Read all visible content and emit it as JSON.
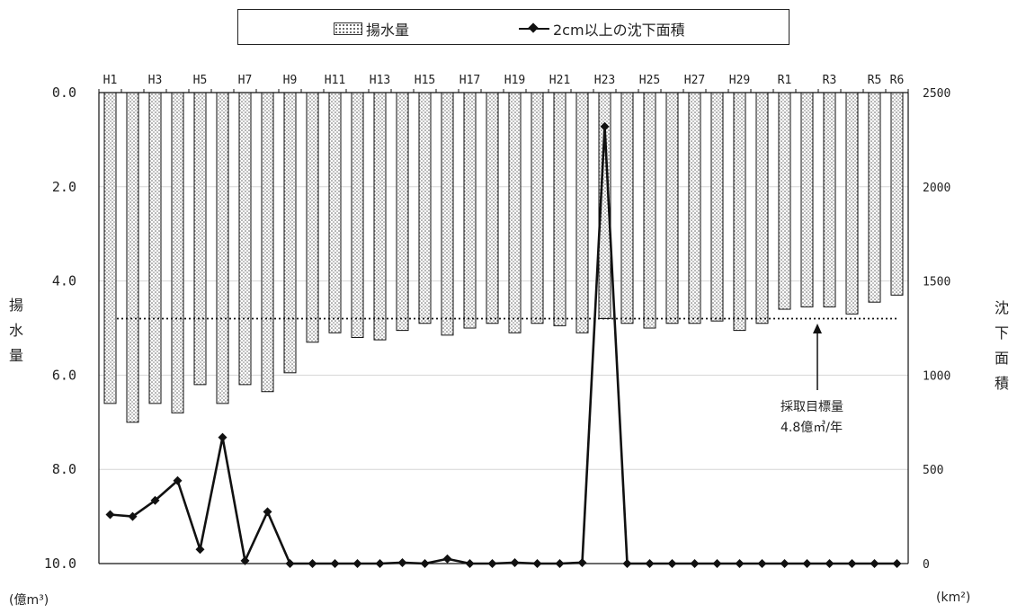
{
  "legend": {
    "bar_label": "揚水量",
    "line_label": "2cm以上の沈下面積"
  },
  "left_axis_title": "揚水量",
  "right_axis_title": "沈下面積",
  "left_unit": "(億m³)",
  "right_unit": "(km²)",
  "annotation": {
    "line1": "採取目標量",
    "line2": "4.8億㎥/年"
  },
  "chart_data": {
    "type": "bar",
    "categories": [
      "H1",
      "H2",
      "H3",
      "H4",
      "H5",
      "H6",
      "H7",
      "H8",
      "H9",
      "H10",
      "H11",
      "H12",
      "H13",
      "H14",
      "H15",
      "H16",
      "H17",
      "H18",
      "H19",
      "H20",
      "H21",
      "H22",
      "H23",
      "H24",
      "H25",
      "H26",
      "H27",
      "H28",
      "H29",
      "H30",
      "R1",
      "R2",
      "R3",
      "R4",
      "R5",
      "R6"
    ],
    "tick_labels": [
      "H1",
      "H3",
      "H5",
      "H7",
      "H9",
      "H11",
      "H13",
      "H15",
      "H17",
      "H19",
      "H21",
      "H23",
      "H25",
      "H27",
      "H29",
      "R1",
      "R3",
      "R5",
      "R6"
    ],
    "series": [
      {
        "name": "揚水量",
        "axis": "left",
        "type": "bar",
        "values": [
          6.6,
          7.0,
          6.6,
          6.8,
          6.2,
          6.6,
          6.2,
          6.35,
          5.95,
          5.3,
          5.1,
          5.2,
          5.25,
          5.05,
          4.9,
          5.15,
          5.0,
          4.9,
          5.1,
          4.9,
          4.95,
          5.1,
          4.8,
          4.9,
          5.0,
          4.9,
          4.9,
          4.85,
          5.05,
          4.9,
          4.6,
          4.55,
          4.55,
          4.7,
          4.45,
          4.3
        ]
      },
      {
        "name": "2cm以上の沈下面積",
        "axis": "right",
        "type": "line",
        "values": [
          260,
          250,
          335,
          440,
          75,
          670,
          15,
          275,
          0,
          0,
          0,
          0,
          0,
          5,
          0,
          25,
          0,
          0,
          5,
          0,
          0,
          5,
          2320,
          0,
          0,
          0,
          0,
          0,
          0,
          0,
          0,
          0,
          0,
          0,
          0,
          0
        ]
      }
    ],
    "left_axis": {
      "min": 0,
      "max": 10,
      "inverted": true,
      "ticks": [
        "0.0",
        "2.0",
        "4.0",
        "6.0",
        "8.0",
        "10.0"
      ]
    },
    "right_axis": {
      "min": 0,
      "max": 2500,
      "ticks": [
        "2500",
        "2000",
        "1500",
        "1000",
        "500",
        "0"
      ]
    },
    "target_line": 4.8,
    "grid": true
  }
}
